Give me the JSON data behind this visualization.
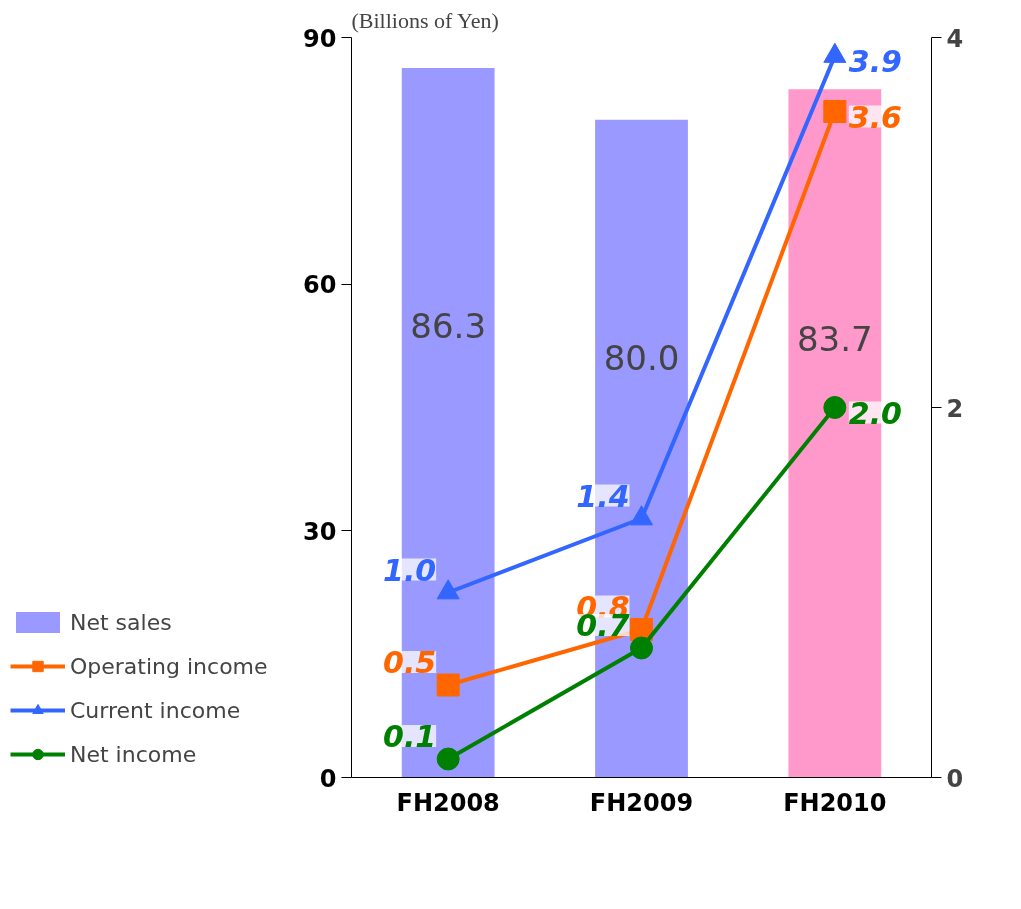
{
  "chart_data": {
    "type": "bar",
    "ylabel": "(Billions of Yen)",
    "categories": [
      "FH2008",
      "FH2009",
      "FH2010"
    ],
    "series": [
      {
        "name": "Net sales",
        "colors": [
          "#9999ff",
          "#9999ff",
          "#ff99cc"
        ],
        "values": [
          86.3,
          80.0,
          83.7
        ],
        "value_labels": [
          "86.3",
          "80.0",
          "83.7"
        ]
      },
      {
        "name": "Operating income",
        "type": "line",
        "axis": "y2",
        "color": "#ff6600",
        "marker": "square",
        "values": [
          0.5,
          0.8,
          3.6
        ],
        "value_labels": [
          "0.5",
          "0.8",
          "3.6"
        ]
      },
      {
        "name": "Current income",
        "type": "line",
        "axis": "y2",
        "color": "#3366ff",
        "marker": "triangle",
        "values": [
          1.0,
          1.4,
          3.9
        ],
        "value_labels": [
          "1.0",
          "1.4",
          "3.9"
        ]
      },
      {
        "name": "Net income",
        "type": "line",
        "axis": "y2",
        "color": "#008000",
        "marker": "circle",
        "values": [
          0.1,
          0.7,
          2.0
        ],
        "value_labels": [
          "0.1",
          "0.7",
          "2.0"
        ]
      }
    ],
    "ylim": [
      0,
      90
    ],
    "yticks": [
      0,
      30,
      60,
      90
    ],
    "y2lim": [
      0,
      4
    ],
    "y2ticks": [
      0,
      2,
      4
    ],
    "legend": "left",
    "grid": false
  }
}
